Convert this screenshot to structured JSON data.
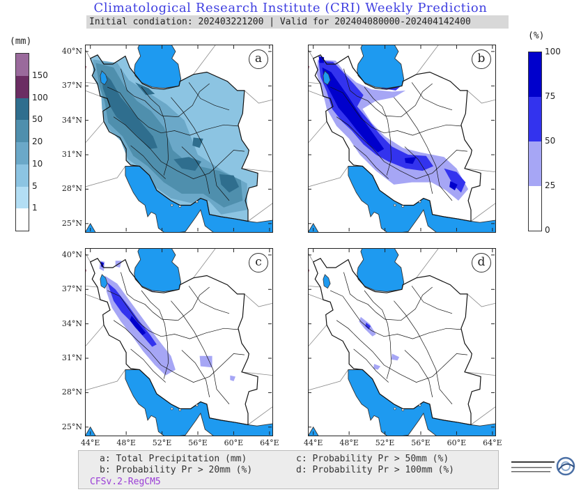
{
  "header": {
    "title": "Climatological Research Institute (CRI) Weekly Prediction",
    "subtitle": "Initial condiation: 202403221200 | Valid for 202404080000-202404142400"
  },
  "precip_colorbar": {
    "unit": "(mm)",
    "labels": [
      "150",
      "100",
      "50",
      "20",
      "10",
      "5",
      "1"
    ],
    "colors": [
      "#9a6a9c",
      "#6b2d63",
      "#2f6e8e",
      "#4f8fad",
      "#6ba8c8",
      "#8cc4e2",
      "#b3def4",
      "#ffffff"
    ]
  },
  "prob_colorbar": {
    "unit": "(%)",
    "labels": [
      "100",
      "75",
      "50",
      "25",
      "0"
    ],
    "colors": [
      "#0000cc",
      "#3333ee",
      "#a6a6f5",
      "#ffffff"
    ]
  },
  "panels": [
    {
      "id": "a"
    },
    {
      "id": "b"
    },
    {
      "id": "c"
    },
    {
      "id": "d"
    }
  ],
  "axes": {
    "lat_labels": [
      "40°N",
      "37°N",
      "34°N",
      "31°N",
      "28°N",
      "25°N"
    ],
    "lon_labels": [
      "44°E",
      "48°E",
      "52°E",
      "56°E",
      "60°E",
      "64°E"
    ]
  },
  "legend": {
    "a": "a: Total Precipitation (mm)",
    "b": "b: Probability Pr > 20mm (%)",
    "c": "c: Probability Pr > 50mm (%)",
    "d": "d: Probability Pr > 100mm (%)",
    "model": "CFSv.2-RegCM5"
  },
  "colors": {
    "sea": "#1e9af0",
    "title": "#3f3fe0",
    "model_text": "#9a3dd6"
  }
}
